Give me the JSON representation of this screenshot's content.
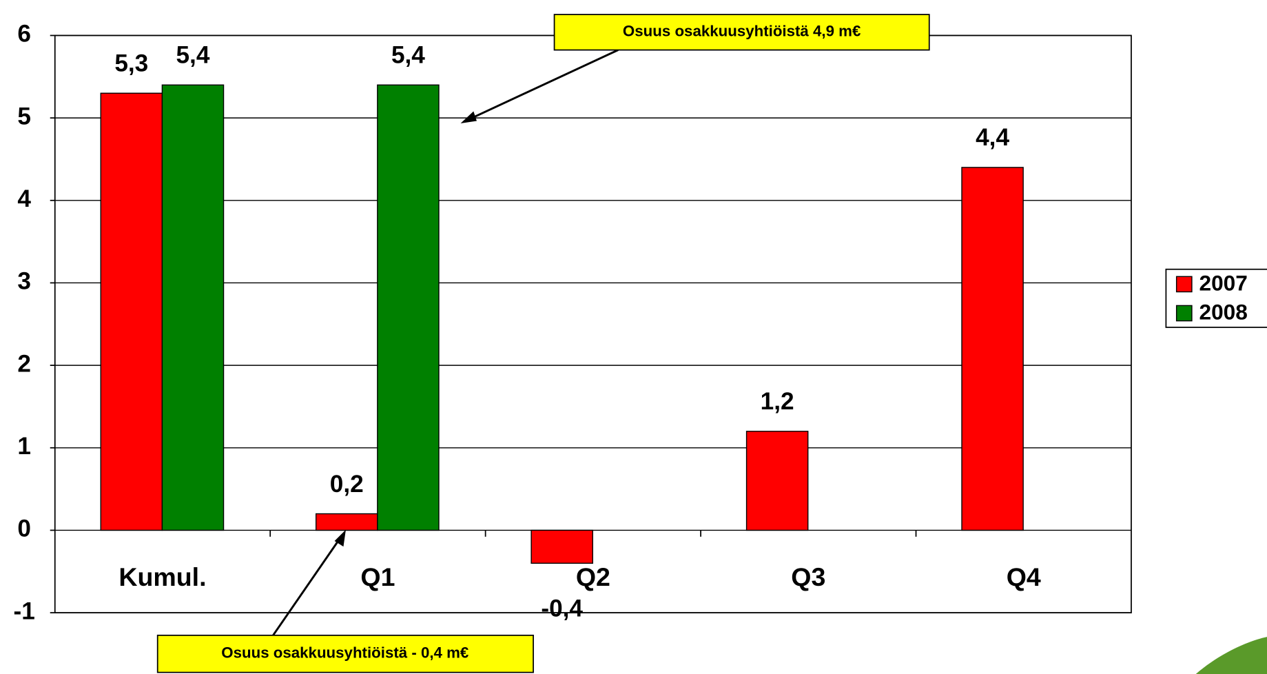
{
  "chart_data": {
    "type": "bar",
    "categories": [
      "Kumul.",
      "Q1",
      "Q2",
      "Q3",
      "Q4"
    ],
    "series": [
      {
        "name": "2007",
        "color": "#ff0000",
        "values": [
          5.3,
          0.2,
          -0.4,
          1.2,
          4.4
        ],
        "value_labels": [
          "5,3",
          "0,2",
          "-0,4",
          "1,2",
          "4,4"
        ]
      },
      {
        "name": "2008",
        "color": "#008000",
        "values": [
          5.4,
          5.4,
          null,
          null,
          null
        ],
        "value_labels": [
          "5,4",
          "5,4",
          null,
          null,
          null
        ]
      }
    ],
    "ylim": [
      -1,
      6
    ],
    "yticks": [
      -1,
      0,
      1,
      2,
      3,
      4,
      5,
      6
    ],
    "grid": true,
    "legend": "right",
    "annotations": [
      {
        "text": "Osuus osakkuusyhtiöistä 4,9 m€"
      },
      {
        "text": "Osuus osakkuusyhtiöistä - 0,4 m€"
      }
    ]
  }
}
